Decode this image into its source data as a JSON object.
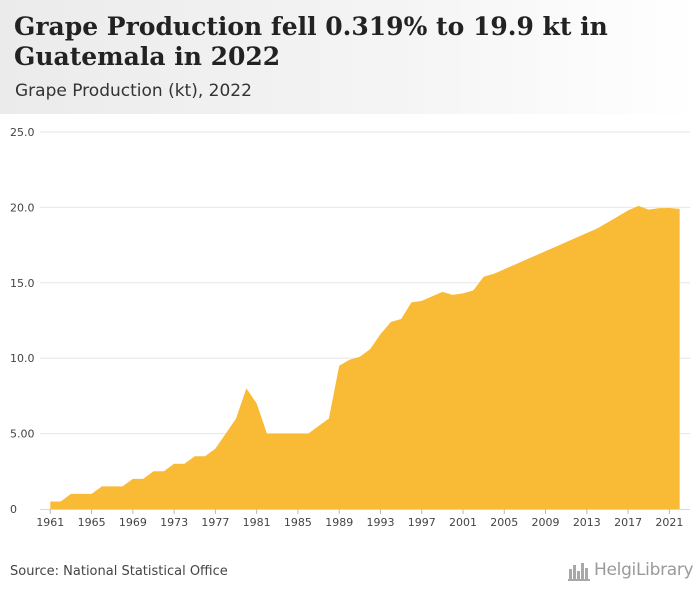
{
  "header": {
    "title": "Grape Production fell 0.319% to 19.9 kt in Guatemala in 2022",
    "subtitle": "Grape Production (kt), 2022"
  },
  "footer": {
    "source": "Source: National Statistical Office",
    "logo_text": "HelgiLibrary",
    "logo_icon": "city-skyline-icon"
  },
  "colors": {
    "area": "#F9BB35",
    "grid": "#e6e6e6",
    "axis_text": "#444444"
  },
  "chart_data": {
    "type": "area",
    "title": "Grape Production (kt), 2022",
    "xlabel": "",
    "ylabel": "",
    "ylim": [
      0,
      25
    ],
    "yticks": [
      0,
      5,
      10,
      15,
      20,
      25
    ],
    "ytick_labels": [
      "0",
      "5.00",
      "10.0",
      "15.0",
      "20.0",
      "25.0"
    ],
    "xlim": [
      1960,
      2023
    ],
    "xticks": [
      1961,
      1965,
      1969,
      1973,
      1977,
      1981,
      1985,
      1989,
      1993,
      1997,
      2001,
      2005,
      2009,
      2013,
      2017,
      2021
    ],
    "grid": true,
    "series": [
      {
        "x": [
          1961,
          1962,
          1963,
          1964,
          1965,
          1966,
          1967,
          1968,
          1969,
          1970,
          1971,
          1972,
          1973,
          1974,
          1975,
          1976,
          1977,
          1978,
          1979,
          1980,
          1981,
          1982,
          1983,
          1984,
          1985,
          1986,
          1987,
          1988,
          1989,
          1990,
          1991,
          1992,
          1993,
          1994,
          1995,
          1996,
          1997,
          1998,
          1999,
          2000,
          2001,
          2002,
          2003,
          2004,
          2005,
          2006,
          2007,
          2008,
          2009,
          2010,
          2011,
          2012,
          2013,
          2014,
          2015,
          2016,
          2017,
          2018,
          2019,
          2020,
          2021,
          2022
        ],
        "values": [
          0.5,
          0.5,
          1.0,
          1.0,
          1.0,
          1.5,
          1.5,
          1.5,
          2.0,
          2.0,
          2.5,
          2.5,
          3.0,
          3.0,
          3.5,
          3.5,
          4.0,
          5.0,
          6.0,
          8.0,
          7.0,
          5.0,
          5.0,
          5.0,
          5.0,
          5.0,
          5.5,
          6.0,
          9.5,
          9.9,
          10.1,
          10.6,
          11.6,
          12.4,
          12.6,
          13.7,
          13.8,
          14.1,
          14.4,
          14.2,
          14.3,
          14.5,
          15.4,
          15.6,
          15.9,
          16.2,
          16.5,
          16.8,
          17.1,
          17.4,
          17.7,
          18.0,
          18.3,
          18.6,
          19.0,
          19.4,
          19.8,
          20.1,
          19.85,
          19.95,
          19.96,
          19.9
        ]
      }
    ]
  }
}
